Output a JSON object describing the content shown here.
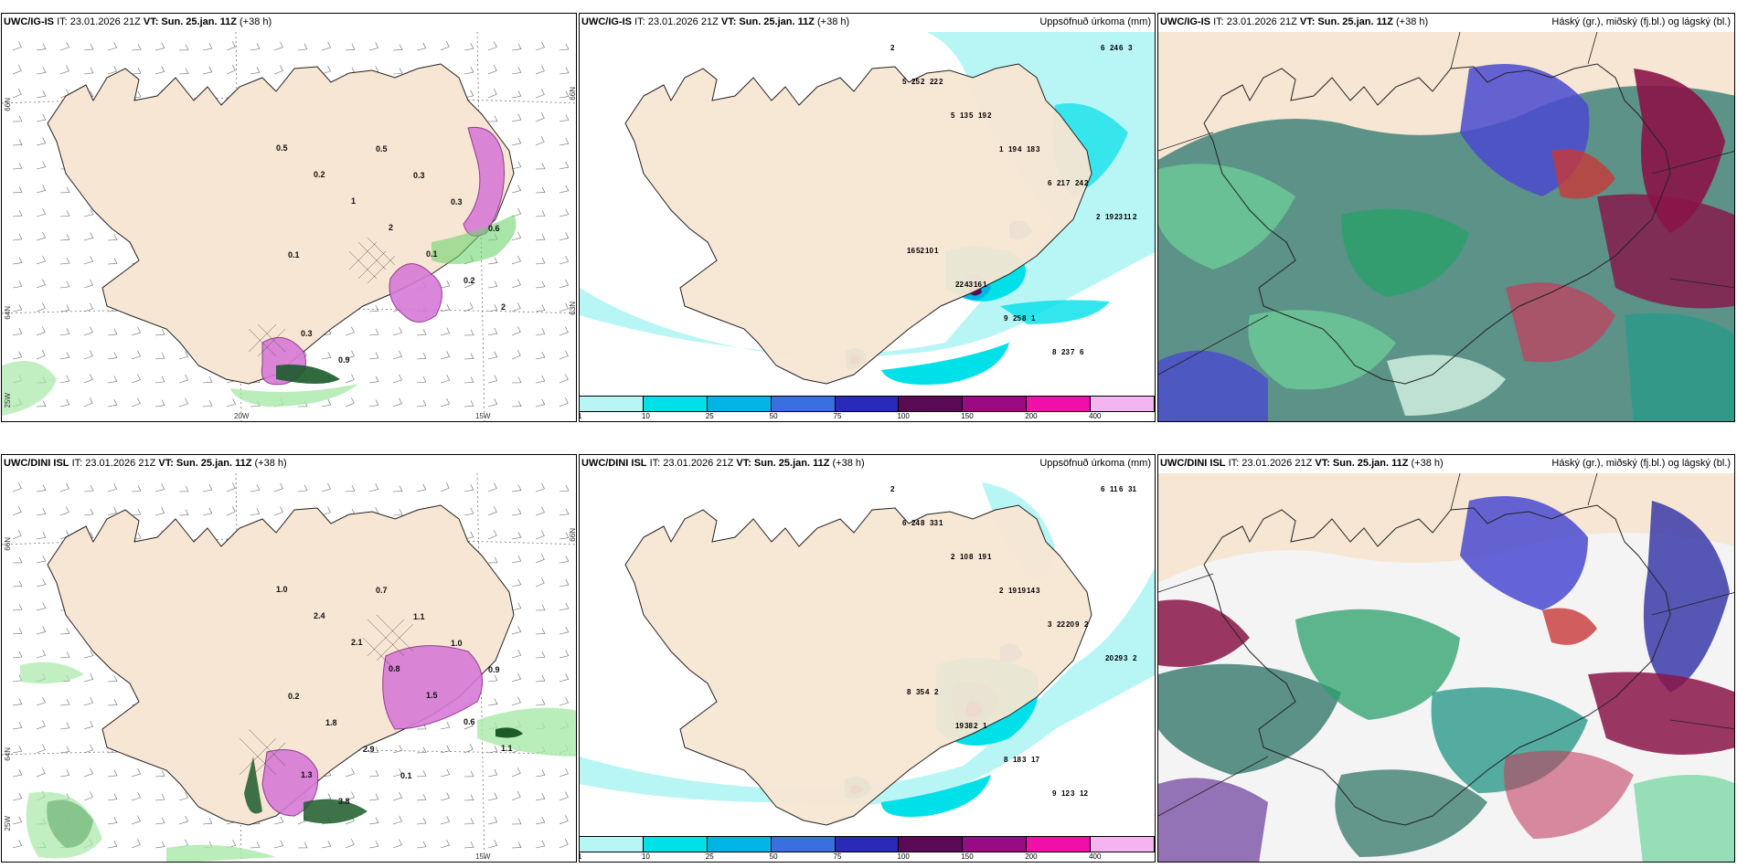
{
  "panels": {
    "p1": {
      "source": "UWC/IG-IS",
      "it": "IT: 23.01.2026 21Z",
      "vt": "VT: Sun. 25.jan. 11Z",
      "lead": "(+38 h)",
      "right_title": ""
    },
    "p2": {
      "source": "UWC/IG-IS",
      "it": "IT: 23.01.2026 21Z",
      "vt": "VT: Sun. 25.jan. 11Z",
      "lead": "(+38 h)",
      "right_title": "Uppsöfnuð úrkoma (mm)"
    },
    "p3": {
      "source": "UWC/IG-IS",
      "it": "IT: 23.01.2026 21Z",
      "vt": "VT: Sun. 25.jan. 11Z",
      "lead": "(+38 h)",
      "right_title": "Háský (gr.), miðský (fj.bl.) og lágský (bl.)"
    },
    "p4": {
      "source": "UWC/DINI ISL",
      "it": "IT: 23.01.2026 21Z",
      "vt": "VT: Sun. 25.jan. 11Z",
      "lead": "(+38 h)",
      "right_title": ""
    },
    "p5": {
      "source": "UWC/DINI ISL",
      "it": "IT: 23.01.2026 21Z",
      "vt": "VT: Sun. 25.jan. 11Z",
      "lead": "(+38 h)",
      "right_title": "Uppsöfnuð úrkoma (mm)"
    },
    "p6": {
      "source": "UWC/DINI ISL",
      "it": "IT: 23.01.2026 21Z",
      "vt": "VT: Sun. 25.jan. 11Z",
      "lead": "(+38 h)",
      "right_title": "Háský (gr.), miðský (fj.bl.) og lágský (bl.)"
    }
  },
  "axes": {
    "lat66": "66N",
    "lat64": "64N",
    "lat63": "63N",
    "lon20": "20W",
    "lon15": "15W",
    "lon25": "25W"
  },
  "colorbar": {
    "ticks": [
      "1",
      "10",
      "25",
      "50",
      "75",
      "100",
      "150",
      "200",
      "400"
    ],
    "colors": [
      "#b8f6f6",
      "#00e0e8",
      "#00b4e6",
      "#3a6fe0",
      "#2a2ab8",
      "#5a0a55",
      "#9a0a82",
      "#ee10a8",
      "#f4b4f0"
    ]
  },
  "precip_labels_top": [
    "2",
    "2",
    "2",
    "3",
    "2",
    "2",
    "1",
    "1",
    "1",
    "6",
    "3",
    "22",
    "19",
    "18",
    "24",
    "11",
    "10",
    "16",
    "8",
    "7",
    "6",
    "2",
    "5",
    "4",
    "7",
    "23",
    "52",
    "43",
    "25",
    "23",
    "24",
    "25",
    "13",
    "19",
    "21",
    "19",
    "16",
    "22",
    "9",
    "8",
    "6",
    "5",
    "5",
    "1",
    "6",
    "2"
  ],
  "precip_labels_bottom": [
    "2",
    "1",
    "1",
    "3",
    "2",
    "2",
    "2",
    "1",
    "17",
    "12",
    "31",
    "33",
    "19",
    "14",
    "9",
    "3",
    "4",
    "2",
    "3",
    "3",
    "6",
    "8",
    "8",
    "19",
    "20",
    "29",
    "35",
    "38",
    "18",
    "12",
    "11",
    "24",
    "10",
    "19",
    "22",
    "20",
    "8",
    "19",
    "8",
    "9",
    "6",
    "6",
    "2",
    "2",
    "3"
  ],
  "wind_labels_top": [
    "0.5",
    "0.2",
    "1",
    "2",
    "0.1",
    "0.2",
    "2",
    "0.3",
    "0.9",
    "0.5",
    "0.3",
    "0.3",
    "0.6",
    "0.1"
  ],
  "wind_labels_bottom": [
    "1.0",
    "2.4",
    "2.1",
    "0.8",
    "1.5",
    "0.6",
    "1.1",
    "1.3",
    "3.8",
    "0.7",
    "1.1",
    "1.0",
    "0.9",
    "0.2",
    "1.8",
    "2.9",
    "0.1"
  ]
}
